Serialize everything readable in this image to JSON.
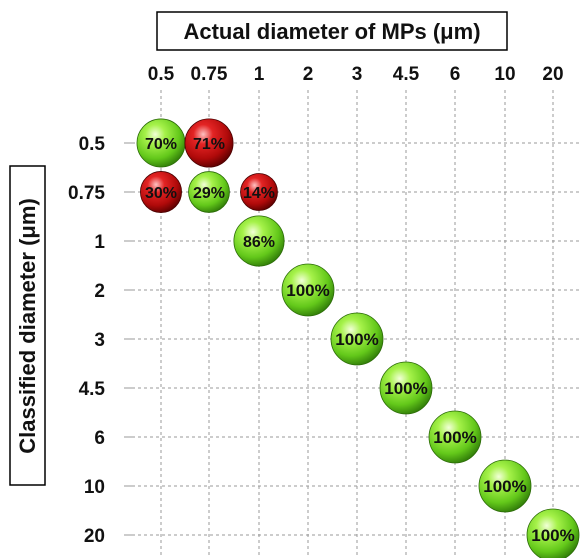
{
  "chart_data": {
    "type": "scatter",
    "title": "Actual diameter of MPs (μm)",
    "ylabel": "Classified diameter (μm)",
    "x_categories": [
      "0.5",
      "0.75",
      "1",
      "2",
      "3",
      "4.5",
      "6",
      "10",
      "20"
    ],
    "y_categories": [
      "0.5",
      "0.75",
      "1",
      "2",
      "3",
      "4.5",
      "6",
      "10",
      "20"
    ],
    "colors": {
      "green": "#7ee02c",
      "red": "#d01010"
    },
    "points": [
      {
        "x": "0.5",
        "y": "0.5",
        "value": 70,
        "label": "70%",
        "color": "green"
      },
      {
        "x": "0.75",
        "y": "0.5",
        "value": 71,
        "label": "71%",
        "color": "red"
      },
      {
        "x": "0.5",
        "y": "0.75",
        "value": 30,
        "label": "30%",
        "color": "red"
      },
      {
        "x": "0.75",
        "y": "0.75",
        "value": 29,
        "label": "29%",
        "color": "green"
      },
      {
        "x": "1",
        "y": "0.75",
        "value": 14,
        "label": "14%",
        "color": "red"
      },
      {
        "x": "1",
        "y": "1",
        "value": 86,
        "label": "86%",
        "color": "green"
      },
      {
        "x": "2",
        "y": "2",
        "value": 100,
        "label": "100%",
        "color": "green"
      },
      {
        "x": "3",
        "y": "3",
        "value": 100,
        "label": "100%",
        "color": "green"
      },
      {
        "x": "4.5",
        "y": "4.5",
        "value": 100,
        "label": "100%",
        "color": "green"
      },
      {
        "x": "6",
        "y": "6",
        "value": 100,
        "label": "100%",
        "color": "green"
      },
      {
        "x": "10",
        "y": "10",
        "value": 100,
        "label": "100%",
        "color": "green"
      },
      {
        "x": "20",
        "y": "20",
        "value": 100,
        "label": "100%",
        "color": "green"
      }
    ],
    "grid": true
  }
}
